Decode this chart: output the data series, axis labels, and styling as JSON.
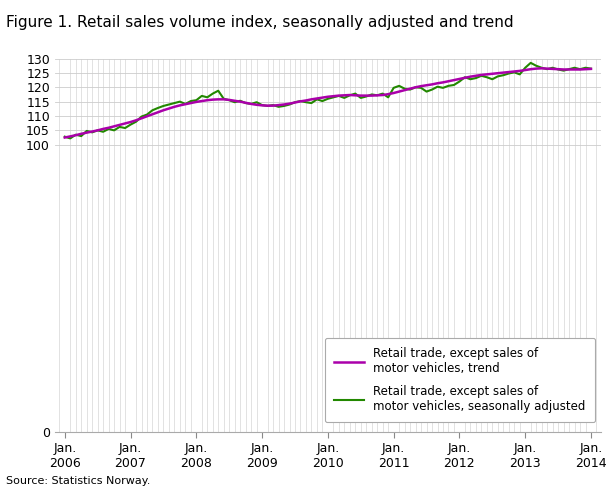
{
  "title": "Figure 1. Retail sales volume index, seasonally adjusted and trend",
  "source": "Source: Statistics Norway.",
  "trend_color": "#aa00aa",
  "seasonal_color": "#228800",
  "trend_lw": 1.8,
  "seasonal_lw": 1.5,
  "background_color": "#ffffff",
  "grid_color": "#cccccc",
  "legend_entries": [
    "Retail trade, except sales of\nmotor vehicles, trend",
    "Retail trade, except sales of\nmotor vehicles, seasonally adjusted"
  ],
  "seasonally_adjusted": [
    102.8,
    102.2,
    103.5,
    103.0,
    104.8,
    104.3,
    105.0,
    104.5,
    105.5,
    105.0,
    106.2,
    105.8,
    107.0,
    108.0,
    109.8,
    110.5,
    112.0,
    112.8,
    113.5,
    114.0,
    114.5,
    115.0,
    114.2,
    115.2,
    115.5,
    117.0,
    116.5,
    117.8,
    118.8,
    116.0,
    115.5,
    114.8,
    115.3,
    114.5,
    114.2,
    114.8,
    113.8,
    113.5,
    113.8,
    113.2,
    113.5,
    114.0,
    114.8,
    115.2,
    114.8,
    114.5,
    115.8,
    115.2,
    116.0,
    116.5,
    117.0,
    116.3,
    117.2,
    117.8,
    116.3,
    116.8,
    117.5,
    117.2,
    117.8,
    116.5,
    119.8,
    120.5,
    119.5,
    119.2,
    120.0,
    119.8,
    118.5,
    119.2,
    120.2,
    119.8,
    120.5,
    120.8,
    122.0,
    123.5,
    122.8,
    123.2,
    124.0,
    123.5,
    122.8,
    123.8,
    124.2,
    124.8,
    125.2,
    124.5,
    126.8,
    128.5,
    127.5,
    126.8,
    126.3,
    126.8,
    126.2,
    125.8,
    126.3,
    126.8,
    126.3,
    126.8,
    126.5
  ],
  "trend": [
    102.5,
    102.9,
    103.3,
    103.8,
    104.2,
    104.6,
    105.0,
    105.5,
    105.9,
    106.4,
    106.9,
    107.4,
    107.9,
    108.5,
    109.2,
    109.9,
    110.6,
    111.3,
    112.0,
    112.6,
    113.2,
    113.7,
    114.1,
    114.5,
    114.9,
    115.2,
    115.5,
    115.7,
    115.8,
    115.8,
    115.6,
    115.3,
    115.0,
    114.6,
    114.2,
    113.9,
    113.7,
    113.6,
    113.6,
    113.8,
    114.0,
    114.3,
    114.7,
    115.1,
    115.4,
    115.8,
    116.1,
    116.4,
    116.7,
    116.9,
    117.1,
    117.2,
    117.3,
    117.2,
    117.1,
    117.1,
    117.1,
    117.2,
    117.3,
    117.6,
    118.0,
    118.5,
    119.0,
    119.5,
    120.0,
    120.4,
    120.7,
    121.0,
    121.4,
    121.7,
    122.1,
    122.5,
    122.9,
    123.3,
    123.7,
    124.0,
    124.3,
    124.5,
    124.7,
    124.9,
    125.1,
    125.3,
    125.5,
    125.7,
    126.0,
    126.3,
    126.5,
    126.6,
    126.5,
    126.4,
    126.3,
    126.2,
    126.2,
    126.2,
    126.2,
    126.3,
    126.4
  ]
}
